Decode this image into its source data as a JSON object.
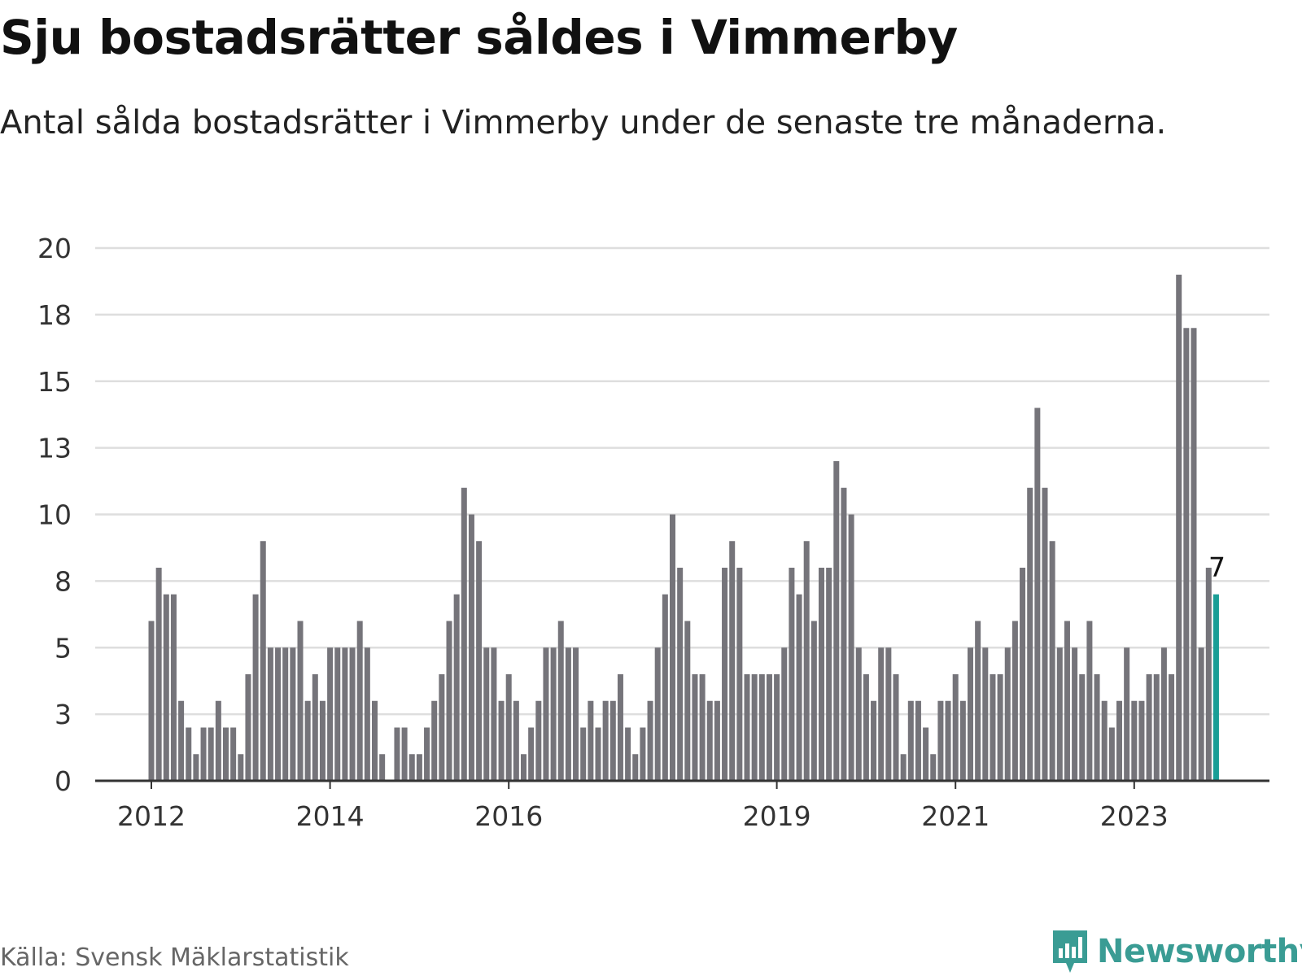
{
  "title": "Sju bostadsrätter såldes i Vimmerby",
  "subtitle": "Antal sålda bostadsrätter i Vimmerby under de senaste tre månaderna.",
  "source": "Källa: Svensk Mäklarstatistik",
  "logo": {
    "name": "newsworthy-icon",
    "text": "Newsworthy"
  },
  "colors": {
    "bar": "#75747a",
    "highlight": "#1a9e96",
    "grid": "#dedede",
    "axis": "#333333",
    "brand": "#3a9c94"
  },
  "chart_data": {
    "type": "bar",
    "title": "Sju bostadsrätter såldes i Vimmerby",
    "xlabel": "",
    "ylabel": "",
    "ylim": [
      0,
      20
    ],
    "yticks": [
      0,
      2.5,
      5,
      7.5,
      10,
      12.5,
      15,
      17.5,
      20
    ],
    "ytick_labels": [
      "0",
      "3",
      "5",
      "8",
      "10",
      "13",
      "15",
      "18",
      "20"
    ],
    "first_period": "2012-01",
    "xtick_labels": [
      {
        "label": "2012",
        "index": 0
      },
      {
        "label": "2014",
        "index": 24
      },
      {
        "label": "2016",
        "index": 48
      },
      {
        "label": "2019",
        "index": 84
      },
      {
        "label": "2021",
        "index": 108
      },
      {
        "label": "2023",
        "index": 132
      }
    ],
    "values": [
      6,
      8,
      7,
      7,
      3,
      2,
      1,
      2,
      2,
      3,
      2,
      2,
      1,
      4,
      7,
      9,
      5,
      5,
      5,
      5,
      6,
      3,
      4,
      3,
      5,
      5,
      5,
      5,
      6,
      5,
      3,
      1,
      0,
      2,
      2,
      1,
      1,
      2,
      3,
      4,
      6,
      7,
      11,
      10,
      9,
      5,
      5,
      3,
      4,
      3,
      1,
      2,
      3,
      5,
      5,
      6,
      5,
      5,
      2,
      3,
      2,
      3,
      3,
      4,
      2,
      1,
      2,
      3,
      5,
      7,
      10,
      8,
      6,
      4,
      4,
      3,
      3,
      8,
      9,
      8,
      4,
      4,
      4,
      4,
      4,
      5,
      8,
      7,
      9,
      6,
      8,
      8,
      12,
      11,
      10,
      5,
      4,
      3,
      5,
      5,
      4,
      1,
      3,
      3,
      2,
      1,
      3,
      3,
      4,
      3,
      5,
      6,
      5,
      4,
      4,
      5,
      6,
      8,
      11,
      14,
      11,
      9,
      5,
      6,
      5,
      4,
      6,
      4,
      3,
      2,
      3,
      5,
      3,
      3,
      4,
      4,
      5,
      4,
      19,
      17,
      17,
      5,
      8,
      7
    ],
    "highlight_index": 143,
    "highlight_label": "7"
  }
}
